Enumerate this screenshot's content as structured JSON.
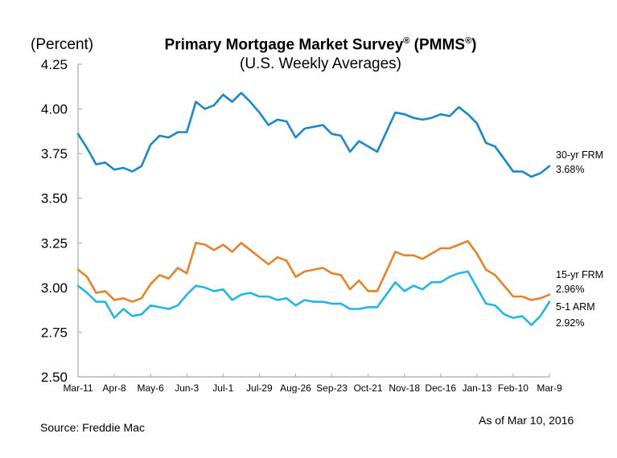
{
  "chart_data": {
    "type": "line",
    "title": "Primary Mortgage Market Survey® (PMMS®)",
    "subtitle": "(U.S. Weekly Averages)",
    "ylabel": "(Percent)",
    "xlabel": "",
    "ylim": [
      2.5,
      4.25
    ],
    "yticks": [
      "4.25",
      "4.00",
      "3.75",
      "3.50",
      "3.25",
      "3.00",
      "2.75",
      "2.50"
    ],
    "ytick_values": [
      4.25,
      4.0,
      3.75,
      3.5,
      3.25,
      3.0,
      2.75,
      2.5
    ],
    "xtick_labels": [
      "Mar-11",
      "Apr-8",
      "May-6",
      "Jun-3",
      "Jul-1",
      "Jul-29",
      "Aug-26",
      "Sep-23",
      "Oct-21",
      "Nov-18",
      "Dec-16",
      "Jan-13",
      "Feb-10",
      "Mar-9"
    ],
    "xtick_interval_weeks": 4,
    "num_weeks": 53,
    "grid": false,
    "legend": "inline-right",
    "series": [
      {
        "name": "30-yr FRM",
        "last_label": "3.68%",
        "color": "#1a87c9",
        "values": [
          3.86,
          3.78,
          3.69,
          3.7,
          3.66,
          3.67,
          3.65,
          3.68,
          3.8,
          3.85,
          3.84,
          3.87,
          3.87,
          4.04,
          4.0,
          4.02,
          4.08,
          4.04,
          4.09,
          4.04,
          3.98,
          3.91,
          3.94,
          3.93,
          3.84,
          3.89,
          3.9,
          3.91,
          3.86,
          3.85,
          3.76,
          3.82,
          3.79,
          3.76,
          3.87,
          3.98,
          3.97,
          3.95,
          3.94,
          3.95,
          3.97,
          3.96,
          4.01,
          3.97,
          3.92,
          3.81,
          3.79,
          3.72,
          3.65,
          3.65,
          3.62,
          3.64,
          3.68
        ]
      },
      {
        "name": "15-yr FRM",
        "last_label": "2.96%",
        "color": "#e8822a",
        "values": [
          3.1,
          3.06,
          2.97,
          2.98,
          2.93,
          2.94,
          2.92,
          2.94,
          3.02,
          3.07,
          3.05,
          3.11,
          3.08,
          3.25,
          3.24,
          3.21,
          3.24,
          3.2,
          3.25,
          3.21,
          3.17,
          3.13,
          3.17,
          3.15,
          3.06,
          3.09,
          3.1,
          3.11,
          3.08,
          3.07,
          2.99,
          3.04,
          2.98,
          2.98,
          3.09,
          3.2,
          3.18,
          3.18,
          3.16,
          3.19,
          3.22,
          3.22,
          3.24,
          3.26,
          3.19,
          3.1,
          3.07,
          3.01,
          2.95,
          2.95,
          2.93,
          2.94,
          2.96
        ]
      },
      {
        "name": "5-1 ARM",
        "last_label": "2.92%",
        "color": "#22b5e8",
        "values": [
          3.01,
          2.97,
          2.92,
          2.92,
          2.83,
          2.88,
          2.84,
          2.85,
          2.9,
          2.89,
          2.88,
          2.9,
          2.96,
          3.01,
          3.0,
          2.98,
          2.99,
          2.93,
          2.96,
          2.97,
          2.95,
          2.95,
          2.93,
          2.94,
          2.9,
          2.93,
          2.92,
          2.92,
          2.91,
          2.91,
          2.88,
          2.88,
          2.89,
          2.89,
          2.96,
          3.03,
          2.98,
          3.01,
          2.99,
          3.03,
          3.03,
          3.06,
          3.08,
          3.09,
          3.0,
          2.91,
          2.9,
          2.85,
          2.83,
          2.84,
          2.79,
          2.84,
          2.92
        ]
      }
    ]
  },
  "header": {
    "unit_label": "(Percent)",
    "title_main": "Primary Mortgage Market Survey",
    "title_reg": "®",
    "title_paren_open": " (PMMS",
    "title_paren_close": ")",
    "subtitle": "(U.S. Weekly Averages)"
  },
  "footer": {
    "source": "Source: Freddie Mac",
    "as_of": "As of Mar 10, 2016"
  }
}
